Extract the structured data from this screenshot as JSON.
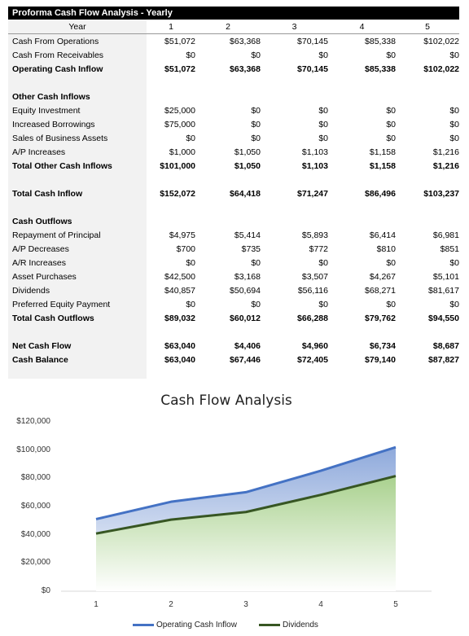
{
  "sheet": {
    "title": "Proforma Cash Flow Analysis - Yearly",
    "header": {
      "label": "Year",
      "years": [
        "1",
        "2",
        "3",
        "4",
        "5"
      ]
    },
    "rows": [
      {
        "label": "Cash From Operations",
        "values": [
          "$51,072",
          "$63,368",
          "$70,145",
          "$85,338",
          "$102,022"
        ]
      },
      {
        "label": "Cash From Receivables",
        "values": [
          "$0",
          "$0",
          "$0",
          "$0",
          "$0"
        ]
      },
      {
        "label": "Operating Cash Inflow",
        "values": [
          "$51,072",
          "$63,368",
          "$70,145",
          "$85,338",
          "$102,022"
        ],
        "style": "bold"
      },
      {
        "label": "",
        "values": [
          "",
          "",
          "",
          "",
          ""
        ]
      },
      {
        "label": "Other Cash Inflows",
        "values": [
          "",
          "",
          "",
          "",
          ""
        ],
        "style": "bold"
      },
      {
        "label": "Equity Investment",
        "values": [
          "$25,000",
          "$0",
          "$0",
          "$0",
          "$0"
        ]
      },
      {
        "label": "Increased Borrowings",
        "values": [
          "$75,000",
          "$0",
          "$0",
          "$0",
          "$0"
        ]
      },
      {
        "label": "Sales of Business Assets",
        "values": [
          "$0",
          "$0",
          "$0",
          "$0",
          "$0"
        ]
      },
      {
        "label": "A/P Increases",
        "values": [
          "$1,000",
          "$1,050",
          "$1,103",
          "$1,158",
          "$1,216"
        ]
      },
      {
        "label": "Total Other Cash Inflows",
        "values": [
          "$101,000",
          "$1,050",
          "$1,103",
          "$1,158",
          "$1,216"
        ],
        "style": "bold"
      },
      {
        "label": "",
        "values": [
          "",
          "",
          "",
          "",
          ""
        ]
      },
      {
        "label": "Total Cash Inflow",
        "values": [
          "$152,072",
          "$64,418",
          "$71,247",
          "$86,496",
          "$103,237"
        ],
        "style": "bold"
      },
      {
        "label": "",
        "values": [
          "",
          "",
          "",
          "",
          ""
        ]
      },
      {
        "label": "Cash Outflows",
        "values": [
          "",
          "",
          "",
          "",
          ""
        ],
        "style": "bold"
      },
      {
        "label": "Repayment of Principal",
        "values": [
          "$4,975",
          "$5,414",
          "$5,893",
          "$6,414",
          "$6,981"
        ]
      },
      {
        "label": "A/P Decreases",
        "values": [
          "$700",
          "$735",
          "$772",
          "$810",
          "$851"
        ]
      },
      {
        "label": "A/R Increases",
        "values": [
          "$0",
          "$0",
          "$0",
          "$0",
          "$0"
        ]
      },
      {
        "label": "Asset Purchases",
        "values": [
          "$42,500",
          "$3,168",
          "$3,507",
          "$4,267",
          "$5,101"
        ]
      },
      {
        "label": "Dividends",
        "values": [
          "$40,857",
          "$50,694",
          "$56,116",
          "$68,271",
          "$81,617"
        ]
      },
      {
        "label": "Preferred Equity Payment",
        "values": [
          "$0",
          "$0",
          "$0",
          "$0",
          "$0"
        ]
      },
      {
        "label": "Total Cash Outflows",
        "values": [
          "$89,032",
          "$60,012",
          "$66,288",
          "$79,762",
          "$94,550"
        ],
        "style": "bold"
      },
      {
        "label": "",
        "values": [
          "",
          "",
          "",
          "",
          ""
        ]
      },
      {
        "label": "Net Cash Flow",
        "values": [
          "$63,040",
          "$4,406",
          "$4,960",
          "$6,734",
          "$8,687"
        ],
        "style": "bold"
      },
      {
        "label": "Cash Balance",
        "values": [
          "$63,040",
          "$67,446",
          "$72,405",
          "$79,140",
          "$87,827"
        ],
        "style": "bold"
      }
    ]
  },
  "chart_data": {
    "type": "area",
    "title": "Cash Flow Analysis",
    "x": [
      1,
      2,
      3,
      4,
      5
    ],
    "ylim": [
      0,
      120000
    ],
    "yticks": [
      0,
      20000,
      40000,
      60000,
      80000,
      100000,
      120000
    ],
    "ytick_labels": [
      "$0",
      "$20,000",
      "$40,000",
      "$60,000",
      "$80,000",
      "$100,000",
      "$120,000"
    ],
    "xtick_labels": [
      "1",
      "2",
      "3",
      "4",
      "5"
    ],
    "grid": false,
    "legend": "bottom",
    "series": [
      {
        "name": "Operating Cash Inflow",
        "values": [
          51072,
          63368,
          70145,
          85338,
          102022
        ],
        "color": "#4472c4",
        "fill_top": "#8ea9db",
        "fill_bottom": "#ffffff"
      },
      {
        "name": "Dividends",
        "values": [
          40857,
          50694,
          56116,
          68271,
          81617
        ],
        "color": "#375623",
        "fill_top": "#a9d18e",
        "fill_bottom": "#ffffff"
      }
    ]
  }
}
